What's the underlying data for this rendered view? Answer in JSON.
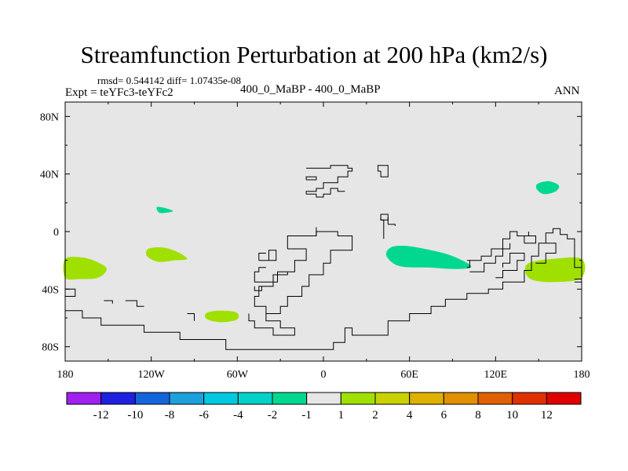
{
  "title": "Streamfunction Perturbation at 200 hPa (km2/s)",
  "stats_line": "rmsd= 0.544142 diff= 1.07435e-08",
  "experiment_label": "Expt = teYFc3-teYFc2",
  "case_label": "400_0_MaBP - 400_0_MaBP",
  "season_label": "ANN",
  "map": {
    "projection": "cylindrical equidistant",
    "lon_range": [
      -180,
      180
    ],
    "lat_range": [
      -90,
      90
    ],
    "background_color": "#e6e6e6",
    "coastline_color": "#000000",
    "y_ticks": [
      {
        "lat": 80,
        "label": "80N"
      },
      {
        "lat": 40,
        "label": "40N"
      },
      {
        "lat": 0,
        "label": "0"
      },
      {
        "lat": -40,
        "label": "40S"
      },
      {
        "lat": -80,
        "label": "80S"
      }
    ],
    "x_ticks": [
      {
        "lon": -180,
        "label": "180"
      },
      {
        "lon": -120,
        "label": "120W"
      },
      {
        "lon": -60,
        "label": "60W"
      },
      {
        "lon": 0,
        "label": "0"
      },
      {
        "lon": 60,
        "label": "60E"
      },
      {
        "lon": 120,
        "label": "120E"
      },
      {
        "lon": 180,
        "label": "180"
      }
    ],
    "anomalies": [
      {
        "name": "anomaly-pos-south-pacific-west",
        "category": "1 to 2",
        "color": "#a0e000",
        "shape": [
          [
            -180,
            -19
          ],
          [
            -168,
            -18
          ],
          [
            -158,
            -21
          ],
          [
            -151,
            -26
          ],
          [
            -157,
            -32
          ],
          [
            -170,
            -33
          ],
          [
            -180,
            -32
          ]
        ]
      },
      {
        "name": "anomaly-pos-south-pacific-east",
        "category": "1 to 2",
        "color": "#a0e000",
        "shape": [
          [
            -122,
            -12
          ],
          [
            -112,
            -11
          ],
          [
            -102,
            -14
          ],
          [
            -95,
            -19
          ],
          [
            -104,
            -20
          ],
          [
            -115,
            -21
          ],
          [
            -123,
            -17
          ]
        ]
      },
      {
        "name": "anomaly-pos-south-atlantic",
        "category": "1 to 2",
        "color": "#a0e000",
        "shape": [
          [
            -82,
            -57
          ],
          [
            -74,
            -55
          ],
          [
            -61,
            -56
          ],
          [
            -60,
            -61
          ],
          [
            -71,
            -63
          ],
          [
            -81,
            -61
          ]
        ]
      },
      {
        "name": "anomaly-pos-southwest-pacific",
        "category": "1 to 2",
        "color": "#a0e000",
        "shape": [
          [
            143,
            -22
          ],
          [
            160,
            -19
          ],
          [
            180,
            -19
          ],
          [
            180,
            -32
          ],
          [
            163,
            -35
          ],
          [
            147,
            -34
          ],
          [
            141,
            -29
          ]
        ]
      },
      {
        "name": "anomaly-neg-central-pacific",
        "category": "-1 to -2",
        "color": "#00d890",
        "shape": [
          [
            -116,
            17
          ],
          [
            -109,
            16
          ],
          [
            -105,
            14
          ],
          [
            -114,
            13
          ]
        ]
      },
      {
        "name": "anomaly-neg-indian-ocean",
        "category": "-1 to -2",
        "color": "#00d890",
        "shape": [
          [
            47,
            -11
          ],
          [
            58,
            -10
          ],
          [
            75,
            -13
          ],
          [
            90,
            -17
          ],
          [
            103,
            -24
          ],
          [
            93,
            -26
          ],
          [
            73,
            -25
          ],
          [
            53,
            -24
          ],
          [
            44,
            -17
          ]
        ]
      },
      {
        "name": "anomaly-neg-northwest-pacific",
        "category": "-1 to -2",
        "color": "#00d890",
        "shape": [
          [
            149,
            33
          ],
          [
            157,
            35
          ],
          [
            164,
            32
          ],
          [
            162,
            28
          ],
          [
            154,
            26
          ],
          [
            149,
            29
          ]
        ]
      }
    ],
    "coastlines": [
      [
        [
          -12,
          44
        ],
        [
          5,
          44
        ],
        [
          5,
          46
        ],
        [
          17,
          46
        ],
        [
          17,
          44
        ],
        [
          20,
          44
        ],
        [
          20,
          42
        ],
        [
          17,
          42
        ],
        [
          17,
          38
        ],
        [
          10,
          38
        ],
        [
          10,
          34
        ],
        [
          0,
          34
        ],
        [
          0,
          30
        ],
        [
          -5,
          30
        ],
        [
          -5,
          28
        ],
        [
          -12,
          28
        ],
        [
          -12,
          26
        ]
      ],
      [
        [
          -12,
          26
        ],
        [
          -5,
          26
        ],
        [
          -5,
          24
        ],
        [
          0,
          24
        ],
        [
          0,
          26
        ],
        [
          5,
          26
        ],
        [
          5,
          30
        ],
        [
          10,
          30
        ],
        [
          10,
          28
        ],
        [
          15,
          28
        ]
      ],
      [
        [
          -12,
          36
        ],
        [
          -5,
          36
        ],
        [
          -5,
          38
        ],
        [
          -12,
          38
        ],
        [
          -12,
          36
        ]
      ],
      [
        [
          -45,
          -20
        ],
        [
          -38,
          -20
        ],
        [
          -38,
          -13
        ],
        [
          -33,
          -13
        ],
        [
          -33,
          -20
        ],
        [
          -38,
          -20
        ]
      ],
      [
        [
          -45,
          -20
        ],
        [
          -45,
          -15
        ],
        [
          -40,
          -15
        ]
      ],
      [
        [
          -25,
          -28
        ],
        [
          -32,
          -28
        ],
        [
          -32,
          -35
        ],
        [
          -48,
          -35
        ],
        [
          -48,
          -28
        ],
        [
          -45,
          -28
        ],
        [
          -45,
          -25
        ],
        [
          -40,
          -25
        ]
      ],
      [
        [
          -48,
          -38
        ],
        [
          -48,
          -41
        ],
        [
          -43,
          -41
        ],
        [
          -43,
          -38
        ]
      ],
      [
        [
          -25,
          -28
        ],
        [
          -20,
          -28
        ],
        [
          -20,
          -20
        ],
        [
          -12,
          -20
        ],
        [
          -12,
          -12
        ],
        [
          -25,
          -12
        ]
      ],
      [
        [
          -25,
          -12
        ],
        [
          -25,
          -3
        ],
        [
          -5,
          -3
        ],
        [
          -5,
          0
        ],
        [
          10,
          0
        ],
        [
          10,
          -3
        ],
        [
          20,
          -3
        ],
        [
          20,
          -13
        ],
        [
          5,
          -13
        ],
        [
          5,
          -22
        ],
        [
          0,
          -22
        ],
        [
          0,
          -30
        ],
        [
          -10,
          -30
        ],
        [
          -10,
          -38
        ],
        [
          -15,
          -38
        ],
        [
          -15,
          -45
        ],
        [
          -25,
          -45
        ],
        [
          -25,
          -52
        ],
        [
          -30,
          -52
        ],
        [
          -30,
          -57
        ],
        [
          -40,
          -57
        ],
        [
          -40,
          -52
        ],
        [
          -48,
          -52
        ],
        [
          -48,
          -45
        ],
        [
          -45,
          -45
        ],
        [
          -45,
          -38
        ],
        [
          -35,
          -38
        ],
        [
          -35,
          -30
        ],
        [
          -25,
          -30
        ],
        [
          -25,
          -28
        ]
      ],
      [
        [
          -40,
          -57
        ],
        [
          -40,
          -62
        ],
        [
          -30,
          -62
        ],
        [
          -30,
          -67
        ],
        [
          -20,
          -67
        ],
        [
          -20,
          -72
        ],
        [
          -35,
          -72
        ],
        [
          -35,
          -67
        ],
        [
          -48,
          -67
        ],
        [
          -48,
          -62
        ],
        [
          -52,
          -62
        ],
        [
          -52,
          -57
        ]
      ],
      [
        [
          40,
          42
        ],
        [
          40,
          38
        ],
        [
          45,
          38
        ],
        [
          45,
          46
        ],
        [
          38,
          46
        ],
        [
          38,
          42
        ],
        [
          40,
          42
        ]
      ],
      [
        [
          42,
          -5
        ],
        [
          42,
          8
        ],
        [
          40,
          8
        ],
        [
          40,
          12
        ],
        [
          45,
          12
        ],
        [
          45,
          5
        ]
      ],
      [
        [
          45,
          5
        ],
        [
          50,
          5
        ],
        [
          50,
          4
        ]
      ],
      [
        [
          175,
          -8
        ],
        [
          175,
          -25
        ],
        [
          180,
          -25
        ]
      ],
      [
        [
          155,
          -8
        ],
        [
          155,
          -1
        ],
        [
          160,
          -1
        ],
        [
          160,
          2
        ],
        [
          165,
          2
        ],
        [
          165,
          -2
        ],
        [
          170,
          -2
        ],
        [
          170,
          -5
        ],
        [
          175,
          -5
        ],
        [
          175,
          -8
        ]
      ],
      [
        [
          155,
          -8
        ],
        [
          150,
          -8
        ],
        [
          150,
          -17
        ],
        [
          145,
          -17
        ],
        [
          145,
          -27
        ],
        [
          140,
          -27
        ],
        [
          140,
          -35
        ],
        [
          125,
          -35
        ],
        [
          125,
          -40
        ],
        [
          115,
          -40
        ],
        [
          115,
          -43
        ],
        [
          100,
          -43
        ],
        [
          100,
          -47
        ],
        [
          85,
          -47
        ],
        [
          85,
          -52
        ],
        [
          75,
          -52
        ],
        [
          75,
          -57
        ],
        [
          60,
          -57
        ],
        [
          60,
          -62
        ],
        [
          45,
          -62
        ],
        [
          45,
          -72
        ],
        [
          20,
          -72
        ],
        [
          20,
          -67
        ],
        [
          15,
          -67
        ],
        [
          15,
          -77
        ],
        [
          7,
          -77
        ],
        [
          7,
          -82
        ],
        [
          -68,
          -82
        ],
        [
          -68,
          -75
        ],
        [
          -100,
          -75
        ],
        [
          -100,
          -70
        ],
        [
          -125,
          -70
        ],
        [
          -125,
          -65
        ],
        [
          -155,
          -65
        ],
        [
          -155,
          -60
        ],
        [
          -168,
          -60
        ],
        [
          -168,
          -55
        ],
        [
          -180,
          -55
        ]
      ],
      [
        [
          175,
          -33
        ],
        [
          180,
          -33
        ]
      ],
      [
        [
          175,
          -35
        ],
        [
          180,
          -35
        ],
        [
          180,
          -53
        ]
      ],
      [
        [
          -180,
          -40
        ],
        [
          -173,
          -40
        ],
        [
          -173,
          -45
        ],
        [
          -180,
          -45
        ]
      ],
      [
        [
          -153,
          -48
        ],
        [
          -147,
          -48
        ],
        [
          -147,
          -50
        ]
      ],
      [
        [
          -138,
          -48
        ],
        [
          -130,
          -48
        ],
        [
          -130,
          -52
        ],
        [
          -125,
          -52
        ]
      ],
      [
        [
          -95,
          -57
        ],
        [
          -90,
          -57
        ],
        [
          -90,
          -62
        ]
      ],
      [
        [
          102,
          -20
        ],
        [
          110,
          -20
        ],
        [
          110,
          -17
        ],
        [
          117,
          -17
        ],
        [
          117,
          -12
        ],
        [
          125,
          -12
        ],
        [
          125,
          -5
        ],
        [
          130,
          -5
        ],
        [
          130,
          0
        ],
        [
          135,
          0
        ],
        [
          135,
          -3
        ],
        [
          143,
          -3
        ],
        [
          143,
          0
        ]
      ],
      [
        [
          102,
          -28
        ],
        [
          112,
          -28
        ],
        [
          112,
          -22
        ],
        [
          120,
          -22
        ],
        [
          120,
          -17
        ],
        [
          125,
          -17
        ],
        [
          125,
          -12
        ],
        [
          130,
          -12
        ],
        [
          130,
          -8
        ]
      ],
      [
        [
          100,
          -25
        ],
        [
          102,
          -25
        ],
        [
          102,
          -20
        ],
        [
          100,
          -20
        ]
      ],
      [
        [
          120,
          -32
        ],
        [
          125,
          -32
        ],
        [
          125,
          -27
        ],
        [
          135,
          -27
        ],
        [
          135,
          -20
        ],
        [
          140,
          -20
        ],
        [
          140,
          -15
        ],
        [
          130,
          -15
        ],
        [
          130,
          -22
        ],
        [
          125,
          -22
        ],
        [
          125,
          -25
        ]
      ],
      [
        [
          140,
          -8
        ],
        [
          140,
          -3
        ],
        [
          148,
          -3
        ],
        [
          148,
          -8
        ],
        [
          140,
          -8
        ]
      ],
      [
        [
          148,
          -22
        ],
        [
          155,
          -22
        ],
        [
          155,
          -15
        ],
        [
          162,
          -15
        ],
        [
          162,
          -8
        ],
        [
          155,
          -8
        ]
      ],
      [
        [
          40,
          10
        ],
        [
          40,
          8
        ],
        [
          45,
          8
        ],
        [
          45,
          10
        ]
      ],
      [
        [
          -5,
          3
        ],
        [
          -5,
          -3
        ]
      ]
    ]
  },
  "colorbar": {
    "colors": [
      "#a020f0",
      "#2020e0",
      "#1464dc",
      "#1ea0dc",
      "#00c8e0",
      "#00d2c8",
      "#00d890",
      "#e6e6e6",
      "#a0e000",
      "#c8d200",
      "#e0b000",
      "#e09000",
      "#e06000",
      "#e03000",
      "#e00000"
    ],
    "labels": [
      "-12",
      "-10",
      "-8",
      "-6",
      "-4",
      "-2",
      "-1",
      "1",
      "2",
      "4",
      "6",
      "8",
      "10",
      "12"
    ]
  }
}
